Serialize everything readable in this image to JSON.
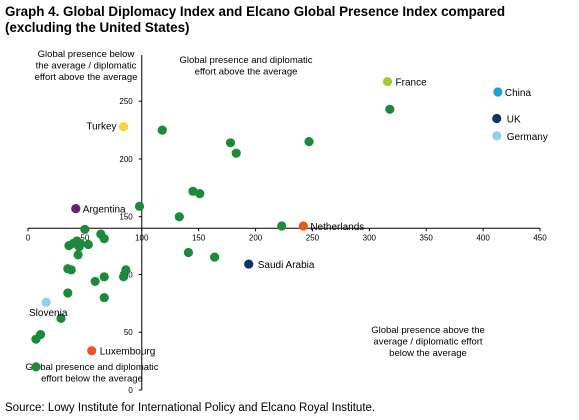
{
  "title_lines": [
    "Graph 4. Global Diplomacy Index and Elcano Global Presence Index compared",
    "(excluding the United States)"
  ],
  "source": "Source: Lowy Institute for International Policy and Elcano Royal Institute.",
  "chart_data": {
    "type": "scatter",
    "x_axis": {
      "min": 0,
      "max": 450,
      "ticks": [
        0,
        50,
        100,
        150,
        200,
        250,
        300,
        350,
        400,
        450
      ]
    },
    "y_axis": {
      "min": 0,
      "max": 290,
      "ticks": [
        0,
        50,
        100,
        150,
        200,
        250
      ],
      "inverted": true
    },
    "cross": {
      "x": 100,
      "y": 140
    },
    "grid": false,
    "colors": {
      "default": "#1b8a3a",
      "France": "#a6c83c",
      "China": "#1f9fd6",
      "UK": "#14306b",
      "Germany": "#8fd0f0",
      "Turkey": "#f7d23e",
      "Argentina": "#6d1f6f",
      "Netherlands": "#e8561e",
      "Saudi Arabia": "#14306b",
      "Slovenia": "#8fd0f0",
      "Luxembourg": "#e8561e"
    },
    "labeled_points": [
      {
        "name": "France",
        "x": 316,
        "y": 267
      },
      {
        "name": "China",
        "x": 413,
        "y": 258
      },
      {
        "name": "UK",
        "x": 412,
        "y": 235
      },
      {
        "name": "Germany",
        "x": 412,
        "y": 220
      },
      {
        "name": "Turkey",
        "x": 84,
        "y": 228
      },
      {
        "name": "Argentina",
        "x": 42,
        "y": 157
      },
      {
        "name": "Netherlands",
        "x": 242,
        "y": 142
      },
      {
        "name": "Saudi Arabia",
        "x": 194,
        "y": 109
      },
      {
        "name": "Slovenia",
        "x": 16,
        "y": 76
      },
      {
        "name": "Luxembourg",
        "x": 56,
        "y": 34
      }
    ],
    "points": [
      {
        "x": 318,
        "y": 243
      },
      {
        "x": 247,
        "y": 215
      },
      {
        "x": 178,
        "y": 214
      },
      {
        "x": 183,
        "y": 205
      },
      {
        "x": 118,
        "y": 225
      },
      {
        "x": 145,
        "y": 172
      },
      {
        "x": 151,
        "y": 170
      },
      {
        "x": 98,
        "y": 159
      },
      {
        "x": 133,
        "y": 150
      },
      {
        "x": 223,
        "y": 142
      },
      {
        "x": 50,
        "y": 139
      },
      {
        "x": 64,
        "y": 135
      },
      {
        "x": 67,
        "y": 131
      },
      {
        "x": 40,
        "y": 127
      },
      {
        "x": 43,
        "y": 129
      },
      {
        "x": 46,
        "y": 127
      },
      {
        "x": 36,
        "y": 125
      },
      {
        "x": 45,
        "y": 124
      },
      {
        "x": 53,
        "y": 126
      },
      {
        "x": 44,
        "y": 117
      },
      {
        "x": 141,
        "y": 119
      },
      {
        "x": 164,
        "y": 115
      },
      {
        "x": 35,
        "y": 105
      },
      {
        "x": 38,
        "y": 104
      },
      {
        "x": 86,
        "y": 104
      },
      {
        "x": 67,
        "y": 98
      },
      {
        "x": 84,
        "y": 98
      },
      {
        "x": 59,
        "y": 94
      },
      {
        "x": 35,
        "y": 84
      },
      {
        "x": 67,
        "y": 80
      },
      {
        "x": 29,
        "y": 62
      },
      {
        "x": 11,
        "y": 48
      },
      {
        "x": 7,
        "y": 44
      },
      {
        "x": 7,
        "y": 20
      }
    ]
  },
  "quadrant_labels": {
    "top_left": [
      "Global presence below",
      "the average / diplomatic",
      "effort above the average"
    ],
    "top_right": [
      "Global presence and diplomatic",
      "effort above the average"
    ],
    "bottom_left": [
      "Global presence and diplomatic",
      "effort below the average"
    ],
    "bottom_right": [
      "Global presence above the",
      "average / diplomatic effort",
      "below the average"
    ]
  }
}
